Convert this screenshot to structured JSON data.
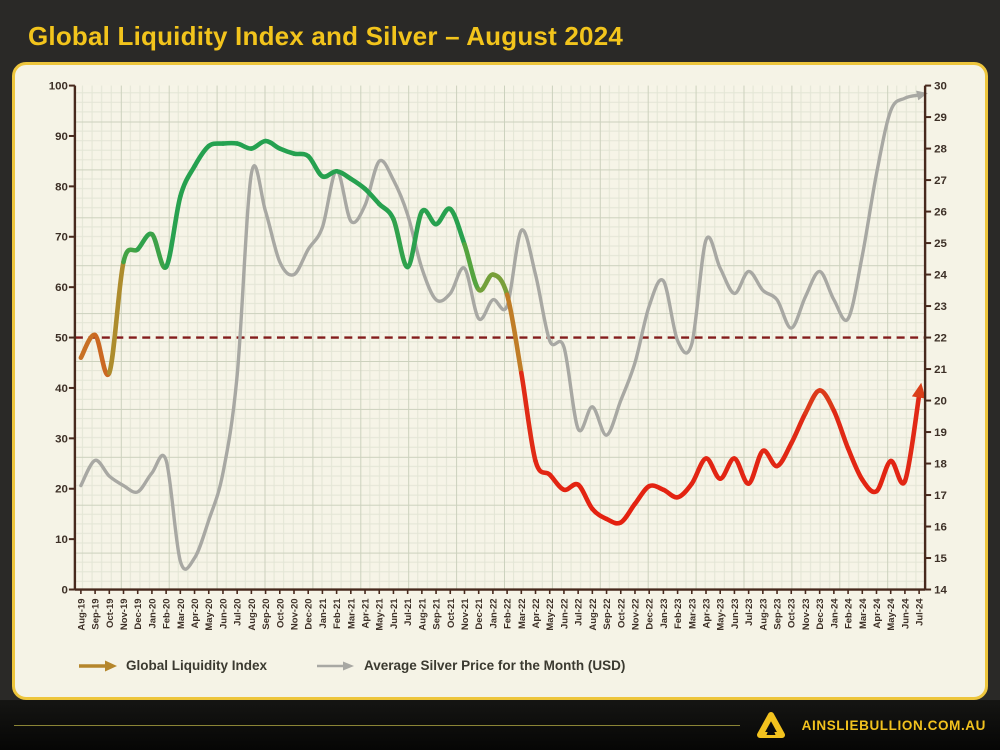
{
  "page": {
    "title": "Global Liquidity Index and Silver – August 2024",
    "footer_text": "AINSLIEBULLION.COM.AU"
  },
  "legend": {
    "gli_label": "Global Liquidity Index",
    "silver_label": "Average Silver Price for the Month (USD)",
    "gli_arrow_color": "#b5862b",
    "silver_arrow_color": "#a8a8a3"
  },
  "chart_data": {
    "type": "line",
    "title": "Global Liquidity Index and Silver – August 2024",
    "x_categories": [
      "Aug-19",
      "Sep-19",
      "Oct-19",
      "Nov-19",
      "Dec-19",
      "Jan-20",
      "Feb-20",
      "Mar-20",
      "Apr-20",
      "May-20",
      "Jun-20",
      "Jul-20",
      "Aug-20",
      "Sep-20",
      "Oct-20",
      "Nov-20",
      "Dec-20",
      "Jan-21",
      "Feb-21",
      "Mar-21",
      "Apr-21",
      "May-21",
      "Jun-21",
      "Jul-21",
      "Aug-21",
      "Sep-21",
      "Oct-21",
      "Nov-21",
      "Dec-21",
      "Jan-22",
      "Feb-22",
      "Mar-22",
      "Apr-22",
      "May-22",
      "Jun-22",
      "Jul-22",
      "Aug-22",
      "Sep-22",
      "Oct-22",
      "Nov-22",
      "Dec-22",
      "Jan-23",
      "Feb-23",
      "Mar-23",
      "Apr-23",
      "May-23",
      "Jun-23",
      "Jul-23",
      "Aug-23",
      "Sep-23",
      "Oct-23",
      "Nov-23",
      "Dec-23",
      "Jan-24",
      "Feb-24",
      "Mar-24",
      "Apr-24",
      "May-24",
      "Jun-24",
      "Jul-24"
    ],
    "left_axis": {
      "min": 0,
      "max": 100,
      "step": 10
    },
    "right_axis": {
      "min": 14,
      "max": 30,
      "step": 1
    },
    "reference_line": {
      "left_value": 50,
      "right_value": 22,
      "color": "#831c1c",
      "style": "dashed"
    },
    "series": [
      {
        "name": "Global Liquidity Index",
        "axis": "left",
        "style": "value-gradient",
        "arrow_end": true,
        "values": [
          46,
          50.5,
          43,
          65,
          67.5,
          70.5,
          64,
          78,
          84,
          88,
          88.5,
          88.5,
          87.5,
          89,
          87.5,
          86.5,
          86,
          82,
          83,
          81.5,
          79.5,
          76.5,
          73.5,
          64,
          75,
          72.5,
          75.5,
          68.5,
          59.5,
          62.5,
          58.5,
          43,
          25.5,
          22.8,
          19.8,
          20.8,
          16,
          14,
          13.3,
          17,
          20.5,
          19.8,
          18.3,
          21,
          26,
          22,
          26,
          21,
          27.5,
          24.5,
          29,
          35,
          39.5,
          35.5,
          28,
          21.8,
          19.5,
          25.5,
          21.5,
          38.5
        ]
      },
      {
        "name": "Average Silver Price for the Month (USD)",
        "axis": "right",
        "color": "#a8a8a3",
        "arrow_end": true,
        "values": [
          17.3,
          18.1,
          17.6,
          17.3,
          17.1,
          17.7,
          18.1,
          14.9,
          15.0,
          16.2,
          17.7,
          20.8,
          27.2,
          26.0,
          24.4,
          24.0,
          24.8,
          25.5,
          27.3,
          25.7,
          26.2,
          27.6,
          27.0,
          25.9,
          24.2,
          23.2,
          23.4,
          24.2,
          22.6,
          23.2,
          23.0,
          25.4,
          24.0,
          21.9,
          21.7,
          19.1,
          19.8,
          18.9,
          20.0,
          21.2,
          23.0,
          23.8,
          21.9,
          21.8,
          25.1,
          24.2,
          23.4,
          24.1,
          23.5,
          23.2,
          22.3,
          23.3,
          24.1,
          23.2,
          22.6,
          24.6,
          27.2,
          29.2,
          29.6,
          29.7
        ]
      }
    ],
    "gli_color_scale": [
      [
        13,
        "#e4200f"
      ],
      [
        34,
        "#e02a16"
      ],
      [
        43,
        "#d4531e"
      ],
      [
        50,
        "#c47a26"
      ],
      [
        57,
        "#9c9a33"
      ],
      [
        64,
        "#55a43f"
      ],
      [
        70,
        "#28a14f"
      ],
      [
        100,
        "#22a150"
      ]
    ],
    "layout": {
      "grid": true,
      "legend_position": "bottom-left",
      "axis_color": "#47291d",
      "label_color": "#3d3027",
      "plot_bg": "#f6f4e7"
    }
  }
}
